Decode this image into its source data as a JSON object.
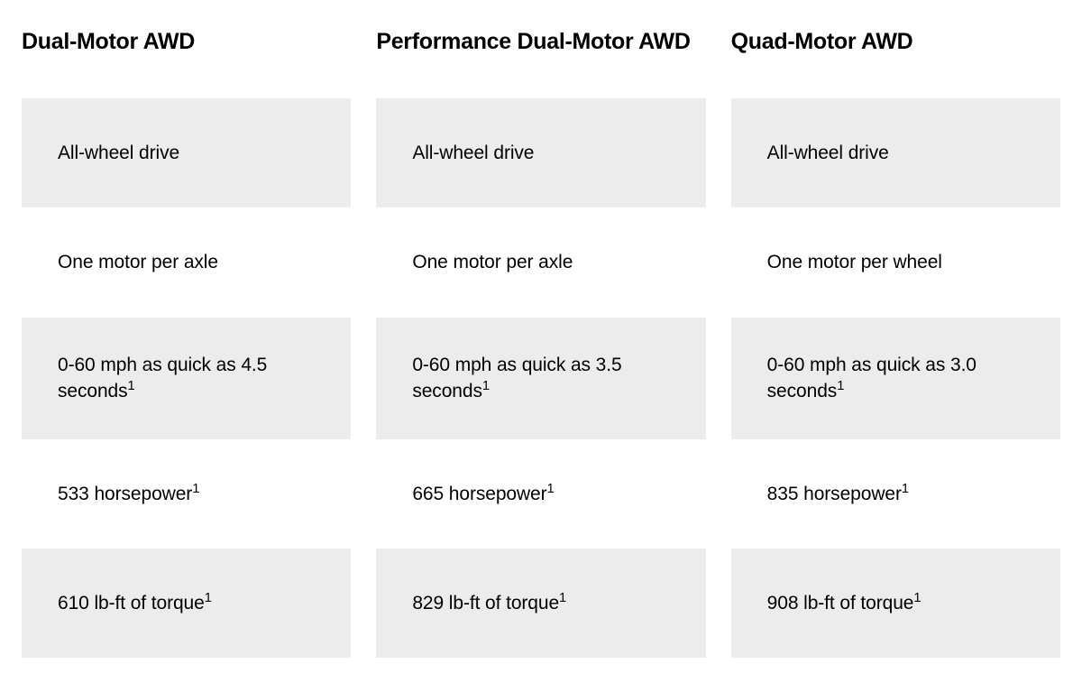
{
  "table": {
    "background_color": "#ffffff",
    "shaded_color": "#ececec",
    "text_color": "#000000",
    "header_fontsize": 25,
    "cell_fontsize": 21,
    "columns": [
      {
        "header": "Dual-Motor AWD",
        "rows": [
          {
            "text": "All-wheel drive",
            "sup": ""
          },
          {
            "text": "One motor per axle",
            "sup": ""
          },
          {
            "text": "0-60 mph as quick as 4.5 seconds",
            "sup": "1"
          },
          {
            "text": "533 horsepower",
            "sup": "1"
          },
          {
            "text": "610 lb-ft of torque",
            "sup": "1"
          }
        ]
      },
      {
        "header": "Performance Dual-Motor AWD",
        "rows": [
          {
            "text": "All-wheel drive",
            "sup": ""
          },
          {
            "text": "One motor per axle",
            "sup": ""
          },
          {
            "text": "0-60 mph as quick as 3.5 seconds",
            "sup": "1"
          },
          {
            "text": "665 horsepower",
            "sup": "1"
          },
          {
            "text": "829 lb-ft of torque",
            "sup": "1"
          }
        ]
      },
      {
        "header": "Quad-Motor AWD",
        "rows": [
          {
            "text": "All-wheel drive",
            "sup": ""
          },
          {
            "text": "One motor per wheel",
            "sup": ""
          },
          {
            "text": "0-60 mph as quick as 3.0 seconds",
            "sup": "1"
          },
          {
            "text": "835 horsepower",
            "sup": "1"
          },
          {
            "text": "908 lb-ft of torque",
            "sup": "1"
          }
        ]
      }
    ]
  }
}
